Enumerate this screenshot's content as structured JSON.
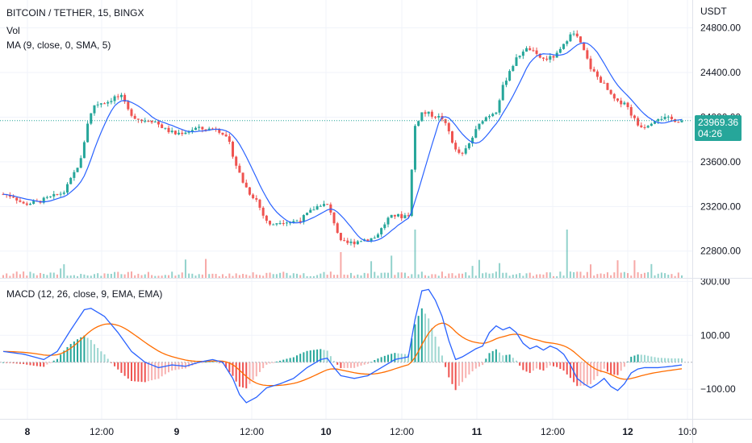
{
  "header": {
    "symbol_line": "BITCOIN / TETHER, 15, BINGX",
    "vol_label": "Vol",
    "ma_label": "MA (9, close, 0, SMA, 5)",
    "macd_label": "MACD (12, 26, close, 9, EMA, EMA)",
    "currency": "USDT"
  },
  "last_price": {
    "value": "23969.36",
    "countdown": "04:26"
  },
  "colors": {
    "up": "#26a69a",
    "down": "#ef5350",
    "ma_line": "#2962ff",
    "macd_line": "#2962ff",
    "signal_line": "#ff6d00",
    "grid": "#f0f3fa"
  },
  "chart_data": [
    {
      "type": "candlestick",
      "x_ticks": [
        "8",
        "12:00",
        "9",
        "12:00",
        "10",
        "12:00",
        "11",
        "12:00",
        "12",
        "10:0"
      ],
      "y_ticks": [
        "24800.00",
        "24400.00",
        "24000.00",
        "23600.00",
        "23200.00",
        "22800.00"
      ],
      "ylim": [
        22560,
        25050
      ],
      "price_path": [
        [
          0,
          23310
        ],
        [
          3,
          23290
        ],
        [
          6,
          23220
        ],
        [
          10,
          23240
        ],
        [
          14,
          23280
        ],
        [
          18,
          23330
        ],
        [
          20,
          23440
        ],
        [
          23,
          23620
        ],
        [
          25,
          23950
        ],
        [
          27,
          24110
        ],
        [
          29,
          24130
        ],
        [
          31,
          24140
        ],
        [
          33,
          24180
        ],
        [
          35,
          24180
        ],
        [
          37,
          24060
        ],
        [
          39,
          24000
        ],
        [
          41,
          23970
        ],
        [
          43,
          23980
        ],
        [
          45,
          23960
        ],
        [
          48,
          23890
        ],
        [
          51,
          23850
        ],
        [
          54,
          23870
        ],
        [
          57,
          23900
        ],
        [
          60,
          23890
        ],
        [
          63,
          23900
        ],
        [
          65,
          23860
        ],
        [
          67,
          23760
        ],
        [
          69,
          23570
        ],
        [
          71,
          23420
        ],
        [
          73,
          23320
        ],
        [
          75,
          23260
        ],
        [
          77,
          23120
        ],
        [
          79,
          23030
        ],
        [
          82,
          23070
        ],
        [
          85,
          23060
        ],
        [
          88,
          23080
        ],
        [
          90,
          23130
        ],
        [
          92,
          23180
        ],
        [
          94,
          23220
        ],
        [
          96,
          23210
        ],
        [
          98,
          23060
        ],
        [
          100,
          22880
        ],
        [
          102,
          22870
        ],
        [
          104,
          22880
        ],
        [
          106,
          22900
        ],
        [
          108,
          22910
        ],
        [
          110,
          22920
        ],
        [
          112,
          23000
        ],
        [
          114,
          23090
        ],
        [
          116,
          23120
        ],
        [
          118,
          23110
        ],
        [
          120,
          23130
        ],
        [
          122,
          23920
        ],
        [
          124,
          24040
        ],
        [
          126,
          24030
        ],
        [
          128,
          24010
        ],
        [
          130,
          23990
        ],
        [
          132,
          23870
        ],
        [
          134,
          23700
        ],
        [
          136,
          23660
        ],
        [
          138,
          23760
        ],
        [
          140,
          23880
        ],
        [
          142,
          23980
        ],
        [
          144,
          24020
        ],
        [
          146,
          24060
        ],
        [
          148,
          24270
        ],
        [
          150,
          24420
        ],
        [
          152,
          24520
        ],
        [
          154,
          24600
        ],
        [
          156,
          24610
        ],
        [
          158,
          24550
        ],
        [
          160,
          24520
        ],
        [
          162,
          24530
        ],
        [
          164,
          24560
        ],
        [
          166,
          24640
        ],
        [
          168,
          24760
        ],
        [
          170,
          24720
        ],
        [
          172,
          24590
        ],
        [
          174,
          24440
        ],
        [
          176,
          24360
        ],
        [
          178,
          24290
        ],
        [
          180,
          24190
        ],
        [
          182,
          24130
        ],
        [
          184,
          24140
        ],
        [
          186,
          24030
        ],
        [
          188,
          23930
        ],
        [
          190,
          23920
        ],
        [
          192,
          23960
        ],
        [
          194,
          24000
        ],
        [
          196,
          23990
        ],
        [
          198,
          23980
        ],
        [
          200,
          23970
        ],
        [
          201,
          23969
        ]
      ],
      "series": [
        {
          "name": "MA (9, close, 0, SMA, 5)",
          "source": "moving average of closes"
        },
        {
          "name": "Vol",
          "source": "volume bars"
        }
      ]
    },
    {
      "type": "macd",
      "y_ticks": [
        "300.00",
        "100.00",
        "−100.00"
      ],
      "ylim": [
        -210,
        310
      ],
      "macd_path": [
        [
          0,
          40
        ],
        [
          6,
          30
        ],
        [
          12,
          10
        ],
        [
          16,
          40
        ],
        [
          20,
          120
        ],
        [
          24,
          195
        ],
        [
          26,
          200
        ],
        [
          30,
          170
        ],
        [
          34,
          110
        ],
        [
          38,
          40
        ],
        [
          42,
          0
        ],
        [
          46,
          -20
        ],
        [
          50,
          -10
        ],
        [
          54,
          -15
        ],
        [
          58,
          0
        ],
        [
          62,
          10
        ],
        [
          65,
          0
        ],
        [
          68,
          -60
        ],
        [
          70,
          -120
        ],
        [
          72,
          -150
        ],
        [
          75,
          -130
        ],
        [
          78,
          -95
        ],
        [
          82,
          -80
        ],
        [
          86,
          -60
        ],
        [
          90,
          -20
        ],
        [
          94,
          10
        ],
        [
          96,
          15
        ],
        [
          98,
          -20
        ],
        [
          100,
          -50
        ],
        [
          104,
          -60
        ],
        [
          108,
          -50
        ],
        [
          112,
          -20
        ],
        [
          116,
          10
        ],
        [
          120,
          20
        ],
        [
          122,
          160
        ],
        [
          124,
          265
        ],
        [
          126,
          270
        ],
        [
          128,
          230
        ],
        [
          130,
          170
        ],
        [
          132,
          80
        ],
        [
          134,
          10
        ],
        [
          136,
          20
        ],
        [
          140,
          50
        ],
        [
          142,
          60
        ],
        [
          144,
          110
        ],
        [
          146,
          135
        ],
        [
          148,
          120
        ],
        [
          150,
          130
        ],
        [
          152,
          110
        ],
        [
          154,
          70
        ],
        [
          156,
          50
        ],
        [
          158,
          60
        ],
        [
          160,
          45
        ],
        [
          162,
          60
        ],
        [
          164,
          50
        ],
        [
          166,
          30
        ],
        [
          168,
          -10
        ],
        [
          170,
          -60
        ],
        [
          172,
          -80
        ],
        [
          174,
          -95
        ],
        [
          176,
          -80
        ],
        [
          178,
          -60
        ],
        [
          180,
          -90
        ],
        [
          182,
          -105
        ],
        [
          184,
          -80
        ],
        [
          186,
          -40
        ],
        [
          188,
          -25
        ],
        [
          190,
          -20
        ],
        [
          194,
          -20
        ],
        [
          198,
          -15
        ],
        [
          201,
          -10
        ]
      ],
      "series": [
        {
          "name": "MACD",
          "color": "#2962ff"
        },
        {
          "name": "Signal",
          "color": "#ff6d00"
        },
        {
          "name": "Histogram"
        }
      ]
    }
  ]
}
